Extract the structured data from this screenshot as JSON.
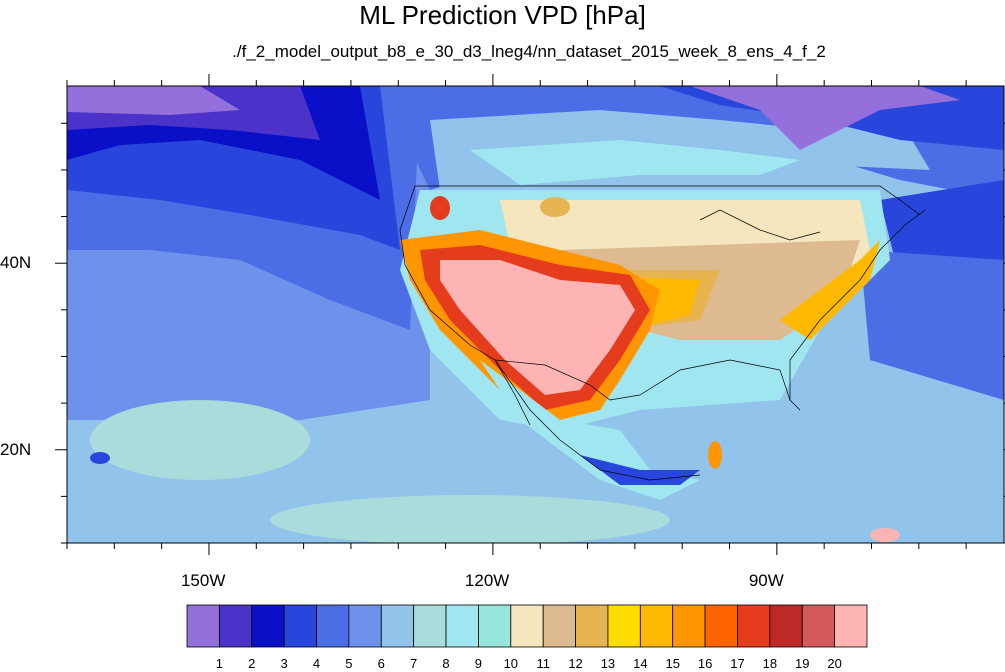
{
  "title": "ML Prediction VPD [hPa]",
  "subtitle": "./f_2_model_output_b8_e_30_d3_lneg4/nn_dataset_2015_week_8_ens_4_f_2",
  "map": {
    "lon_range": [
      -165,
      -66
    ],
    "lat_range": [
      10,
      59
    ],
    "lon_ticks": [
      {
        "value": -150,
        "label": "150W"
      },
      {
        "value": -120,
        "label": "120W"
      },
      {
        "value": -90,
        "label": "90W"
      }
    ],
    "lat_ticks": [
      {
        "value": 40,
        "label": "40N"
      },
      {
        "value": 20,
        "label": "20N"
      }
    ]
  },
  "colorbar": {
    "labels": [
      "1",
      "2",
      "3",
      "4",
      "5",
      "6",
      "7",
      "8",
      "9",
      "10",
      "11",
      "12",
      "13",
      "14",
      "15",
      "16",
      "17",
      "18",
      "19",
      "20"
    ],
    "colors": [
      "#9370db",
      "#4b32c8",
      "#0a0fc8",
      "#2846dc",
      "#4b6ee6",
      "#6e91eb",
      "#91c3eb",
      "#aadcdc",
      "#a0e6f0",
      "#96e6dc",
      "#f5e6be",
      "#deba91",
      "#e6b450",
      "#ffdc00",
      "#ffb900",
      "#ff9600",
      "#ff6400",
      "#e63c1e",
      "#be2828",
      "#d25a5a",
      "#ffb4b4"
    ]
  }
}
